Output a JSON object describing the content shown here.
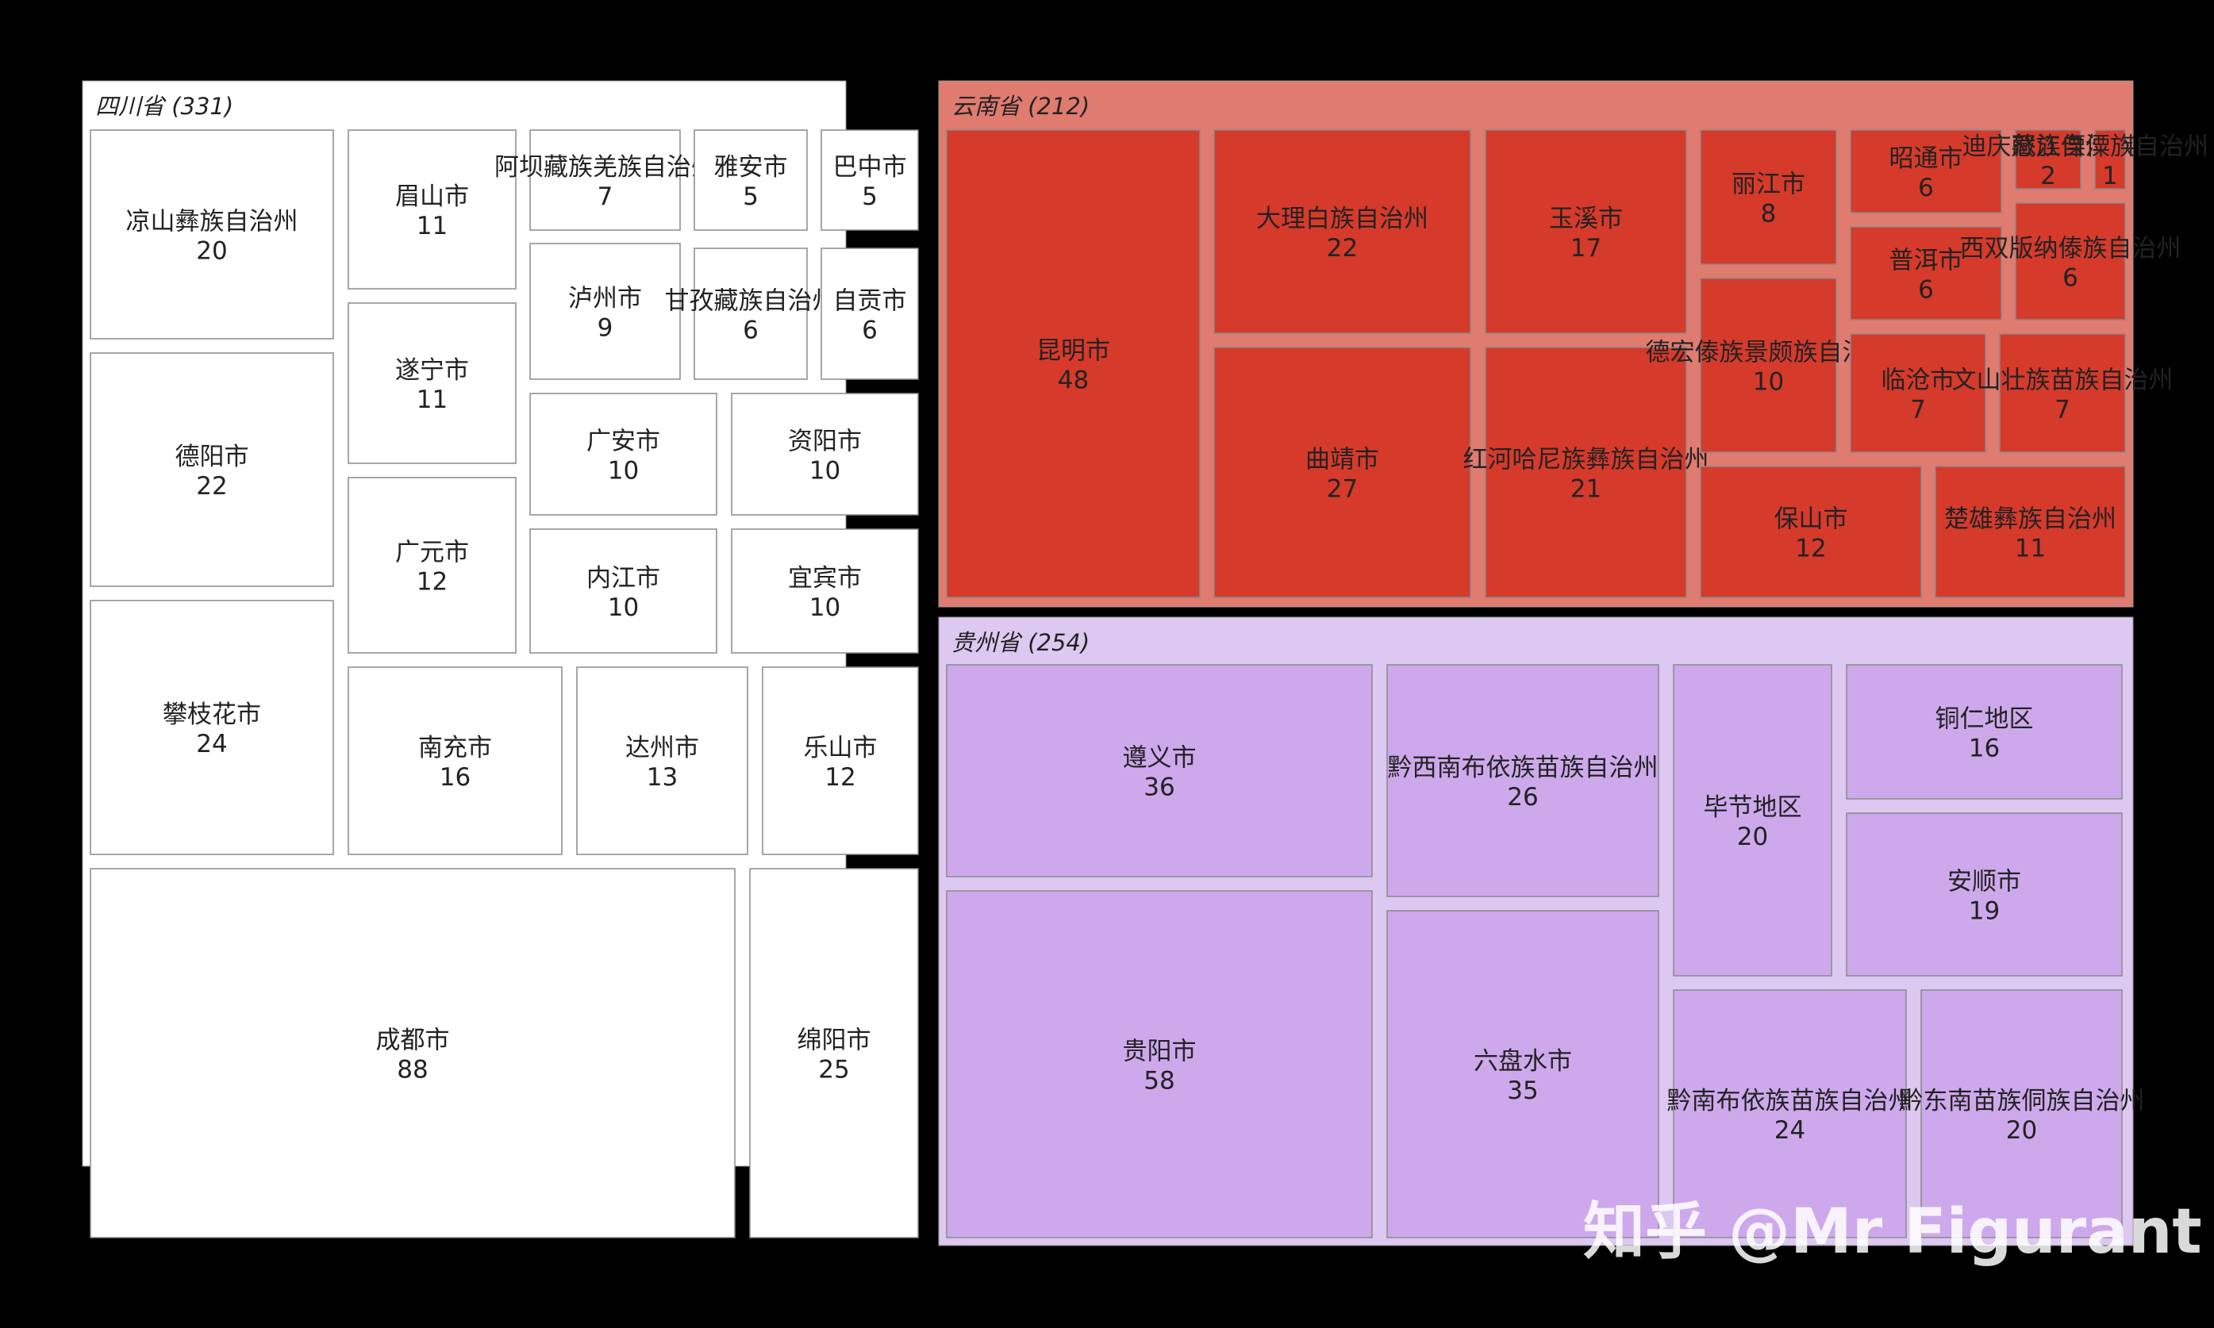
{
  "chart_data": {
    "type": "treemap",
    "title": "",
    "groups": [
      {
        "name": "四川省",
        "total": 331,
        "label": "四川省 (331)",
        "color": "#ffffff",
        "cell_color": "#ffffff",
        "children": [
          {
            "name": "成都市",
            "value": 88
          },
          {
            "name": "绵阳市",
            "value": 25
          },
          {
            "name": "攀枝花市",
            "value": 24
          },
          {
            "name": "德阳市",
            "value": 22
          },
          {
            "name": "凉山彝族自治州",
            "value": 20
          },
          {
            "name": "南充市",
            "value": 16
          },
          {
            "name": "达州市",
            "value": 13
          },
          {
            "name": "乐山市",
            "value": 12
          },
          {
            "name": "广元市",
            "value": 12
          },
          {
            "name": "遂宁市",
            "value": 11
          },
          {
            "name": "眉山市",
            "value": 11
          },
          {
            "name": "广安市",
            "value": 10
          },
          {
            "name": "资阳市",
            "value": 10
          },
          {
            "name": "内江市",
            "value": 10
          },
          {
            "name": "宜宾市",
            "value": 10
          },
          {
            "name": "泸州市",
            "value": 9
          },
          {
            "name": "阿坝藏族羌族自治州",
            "value": 7
          },
          {
            "name": "甘孜藏族自治州",
            "value": 6
          },
          {
            "name": "自贡市",
            "value": 6
          },
          {
            "name": "雅安市",
            "value": 5
          },
          {
            "name": "巴中市",
            "value": 5
          }
        ]
      },
      {
        "name": "云南省",
        "total": 212,
        "label": "云南省 (212)",
        "color": "#e07b70",
        "cell_color": "#d53a2b",
        "children": [
          {
            "name": "昆明市",
            "value": 48
          },
          {
            "name": "曲靖市",
            "value": 27
          },
          {
            "name": "大理白族自治州",
            "value": 22
          },
          {
            "name": "红河哈尼族彝族自治州",
            "value": 21
          },
          {
            "name": "玉溪市",
            "value": 17
          },
          {
            "name": "保山市",
            "value": 12
          },
          {
            "name": "楚雄彝族自治州",
            "value": 11
          },
          {
            "name": "德宏傣族景颇族自治州",
            "value": 10
          },
          {
            "name": "丽江市",
            "value": 8
          },
          {
            "name": "临沧市",
            "value": 7
          },
          {
            "name": "文山壮族苗族自治州",
            "value": 7
          },
          {
            "name": "昭通市",
            "value": 6
          },
          {
            "name": "普洱市",
            "value": 6
          },
          {
            "name": "西双版纳傣族自治州",
            "value": 6
          },
          {
            "name": "迪庆藏族自治州",
            "value": 2
          },
          {
            "name": "怒江傈僳族自治州",
            "value": 1
          }
        ]
      },
      {
        "name": "贵州省",
        "total": 254,
        "label": "贵州省 (254)",
        "color": "#dcc8f0",
        "cell_color": "#cda9ec",
        "children": [
          {
            "name": "贵阳市",
            "value": 58
          },
          {
            "name": "遵义市",
            "value": 36
          },
          {
            "name": "六盘水市",
            "value": 35
          },
          {
            "name": "黔西南布依族苗族自治州",
            "value": 26
          },
          {
            "name": "黔南布依族苗族自治州",
            "value": 24
          },
          {
            "name": "毕节地区",
            "value": 20
          },
          {
            "name": "黔东南苗族侗族自治州",
            "value": 20
          },
          {
            "name": "安顺市",
            "value": 19
          },
          {
            "name": "铜仁地区",
            "value": 16
          }
        ]
      }
    ]
  },
  "watermark": "知乎 @Mr Figurant"
}
